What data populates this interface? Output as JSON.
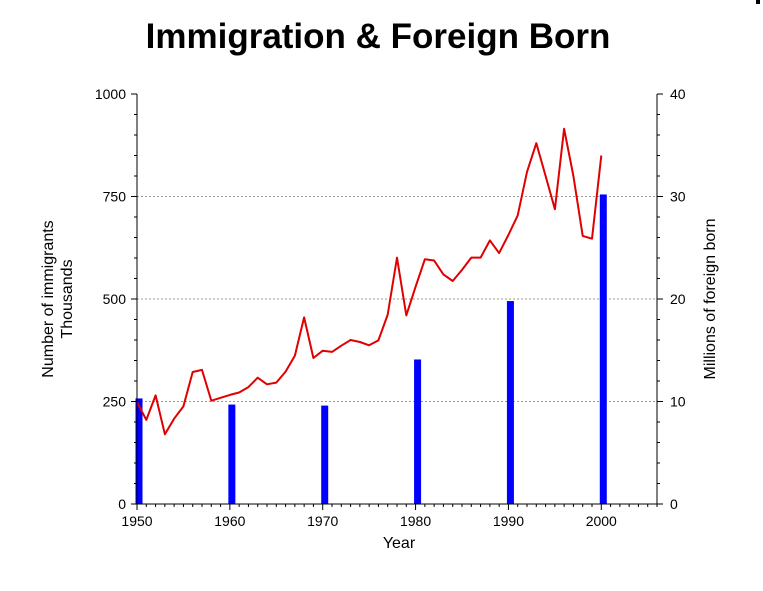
{
  "chart_data": {
    "type": "bar+line",
    "title": "Immigration & Foreign Born",
    "xlabel": "Year",
    "ylabel_left": [
      "Number of immigrants",
      "Thousands"
    ],
    "ylabel_right": "Millions of foreign born",
    "xlim": [
      1950,
      2006
    ],
    "ylim_left": [
      0,
      1000
    ],
    "ylim_right": [
      0,
      40
    ],
    "x_ticks": [
      "1950",
      "1960",
      "1970",
      "1980",
      "1990",
      "2000"
    ],
    "y_left_ticks": [
      "0",
      "250",
      "500",
      "750",
      "1000"
    ],
    "y_right_ticks": [
      "0",
      "10",
      "20",
      "30",
      "40"
    ],
    "grid": "horizontal dotted at left-axis major ticks",
    "series": [
      {
        "kind": "bar",
        "axis": "right",
        "color": "#0000ff",
        "x": [
          1950,
          1960,
          1970,
          1980,
          1990,
          2000
        ],
        "values": [
          10.3,
          9.7,
          9.6,
          14.1,
          19.8,
          30.2
        ]
      },
      {
        "kind": "line",
        "axis": "left",
        "color": "#e00000",
        "x": [
          1950,
          1951,
          1952,
          1953,
          1954,
          1955,
          1956,
          1957,
          1958,
          1959,
          1960,
          1961,
          1962,
          1963,
          1964,
          1965,
          1966,
          1967,
          1968,
          1969,
          1970,
          1971,
          1972,
          1973,
          1974,
          1975,
          1976,
          1977,
          1978,
          1979,
          1980,
          1981,
          1982,
          1983,
          1984,
          1985,
          1986,
          1987,
          1988,
          1989,
          1990,
          1991,
          1992,
          1993,
          1994,
          1995,
          1996,
          1997,
          1998,
          1999,
          2000
        ],
        "values": [
          249,
          205,
          265,
          170,
          208,
          238,
          322,
          327,
          252,
          259,
          266,
          272,
          285,
          308,
          292,
          296,
          323,
          362,
          455,
          356,
          374,
          371,
          386,
          400,
          395,
          387,
          399,
          462,
          601,
          460,
          530,
          597,
          594,
          560,
          544,
          571,
          601,
          601,
          643,
          612,
          656,
          704,
          810,
          880,
          800,
          719,
          915,
          800,
          654,
          647,
          850
        ]
      }
    ]
  }
}
